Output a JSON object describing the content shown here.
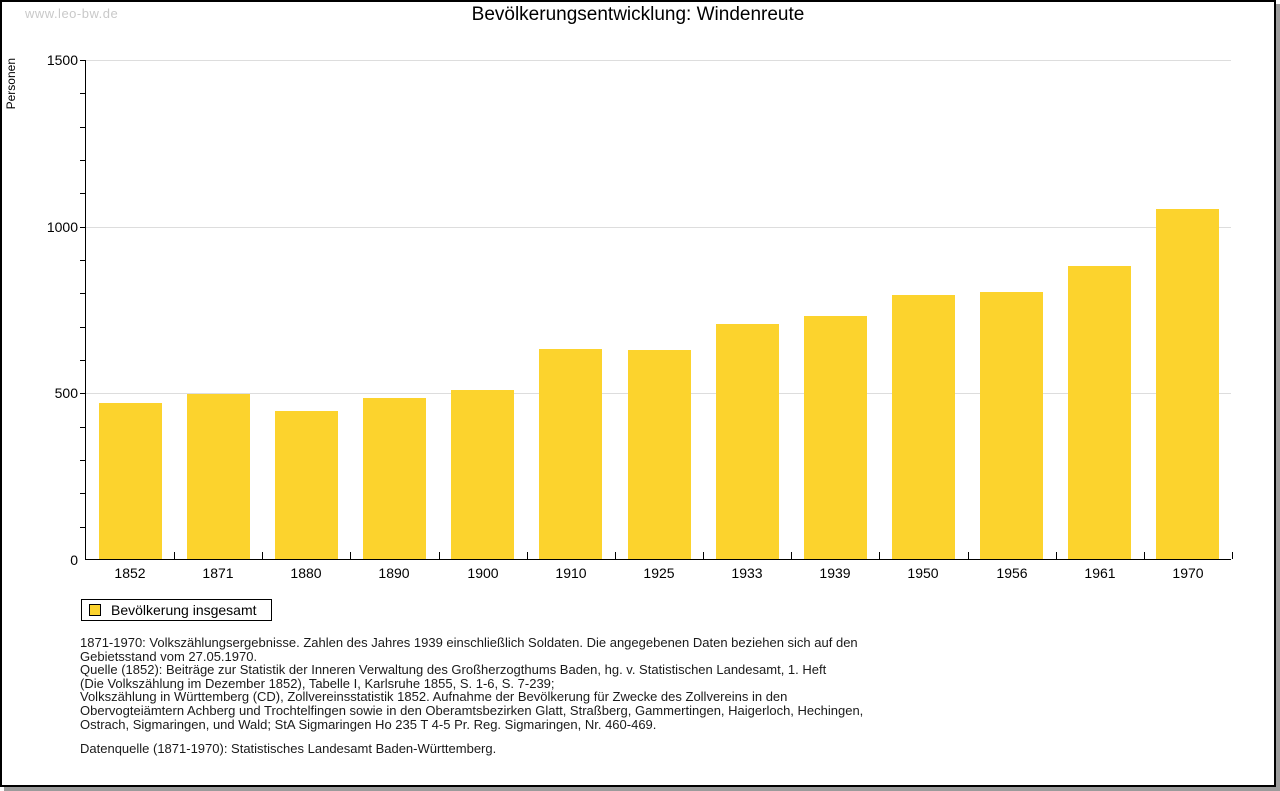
{
  "page": {
    "watermark": "www.leo-bw.de"
  },
  "chart_data": {
    "type": "bar",
    "title": "Bevölkerungsentwicklung: Windenreute",
    "xlabel": "",
    "ylabel": "Personen",
    "categories": [
      "1852",
      "1871",
      "1880",
      "1890",
      "1900",
      "1910",
      "1925",
      "1933",
      "1939",
      "1950",
      "1956",
      "1961",
      "1970"
    ],
    "values": [
      468,
      494,
      443,
      483,
      507,
      631,
      628,
      704,
      728,
      792,
      801,
      878,
      1051
    ],
    "ylim": [
      0,
      1500
    ],
    "ytick_values": [
      0,
      500,
      1000,
      1500
    ],
    "ytick_labels": [
      "0",
      "500",
      "1000",
      "1500"
    ],
    "minor_tick_step": 100,
    "grid": true,
    "legend_position": "bottom-left",
    "bar_color": "#FCD32D",
    "grid_color": "#dddddd",
    "axis_color": "#000000"
  },
  "legend": {
    "label": "Bevölkerung insgesamt",
    "swatch_color": "#FCD32D"
  },
  "notes": {
    "block1": "1871-1970: Volkszählungsergebnisse. Zahlen des Jahres 1939 einschließlich Soldaten. Die angegebenen Daten beziehen sich auf den\nGebietsstand vom 27.05.1970.\nQuelle (1852): Beiträge zur Statistik der Inneren Verwaltung des Großherzogthums Baden, hg. v. Statistischen Landesamt, 1. Heft\n(Die Volkszählung im Dezember 1852), Tabelle I, Karlsruhe 1855, S. 1-6, S. 7-239;\nVolkszählung in Württemberg (CD), Zollvereinsstatistik 1852. Aufnahme der Bevölkerung für Zwecke des Zollvereins in den\nObervogteiämtern Achberg und Trochtelfingen sowie in den Oberamtsbezirken Glatt, Straßberg, Gammertingen, Haigerloch, Hechingen,\nOstrach, Sigmaringen, und Wald; StA Sigmaringen Ho 235 T 4-5 Pr. Reg. Sigmaringen, Nr. 460-469.",
    "block2": "Datenquelle (1871-1970): Statistisches Landesamt Baden-Württemberg."
  }
}
